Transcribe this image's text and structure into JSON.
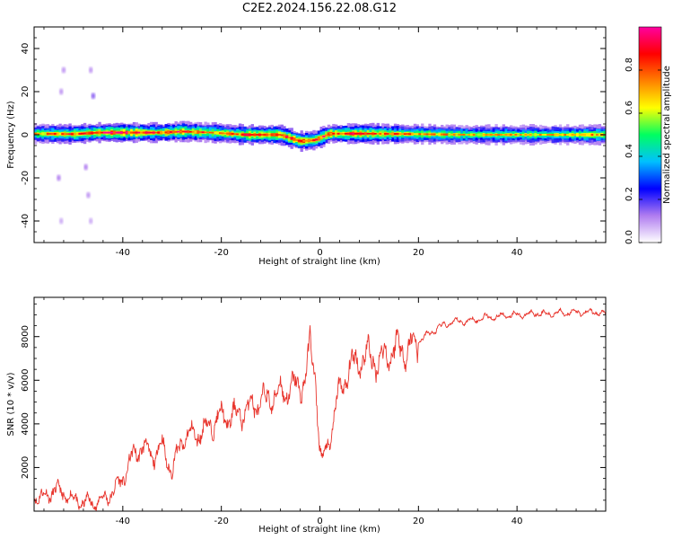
{
  "title": "C2E2.2024.156.22.08.G12",
  "chart_data": [
    {
      "type": "heatmap",
      "xlabel": "Height of straight line (km)",
      "ylabel": "Frequency (Hz)",
      "xlim": [
        -58,
        58
      ],
      "ylim": [
        -50,
        50
      ],
      "xticks": [
        -40,
        -20,
        0,
        20,
        40
      ],
      "yticks": [
        -40,
        -20,
        0,
        20,
        40
      ],
      "colorbar": {
        "label": "Normalized spectral amplitude",
        "range": [
          0,
          1
        ],
        "ticks": [
          0.0,
          0.2,
          0.4,
          0.6,
          0.8
        ],
        "colors": [
          "#ffffff",
          "#b07cf0",
          "#0000ff",
          "#00c0ff",
          "#00ff60",
          "#ffff00",
          "#ff8000",
          "#ff0000",
          "#ff00a0"
        ]
      },
      "ridge": [
        {
          "x": -58,
          "f": 0.5,
          "amp": 0.7
        },
        {
          "x": -50,
          "f": 0.3,
          "amp": 0.85
        },
        {
          "x": -45,
          "f": 1.0,
          "amp": 0.9
        },
        {
          "x": -40,
          "f": 1.0,
          "amp": 0.95
        },
        {
          "x": -32,
          "f": 1.0,
          "amp": 0.8
        },
        {
          "x": -28,
          "f": 1.5,
          "amp": 0.95
        },
        {
          "x": -22,
          "f": 1.0,
          "amp": 0.75
        },
        {
          "x": -15,
          "f": 0.0,
          "amp": 0.9
        },
        {
          "x": -8,
          "f": 0.0,
          "amp": 0.9
        },
        {
          "x": -4,
          "f": -3.0,
          "amp": 0.95
        },
        {
          "x": -1,
          "f": -2.5,
          "amp": 0.85
        },
        {
          "x": 2,
          "f": 0.5,
          "amp": 0.9
        },
        {
          "x": 10,
          "f": 0.5,
          "amp": 0.85
        },
        {
          "x": 20,
          "f": 0.3,
          "amp": 0.75
        },
        {
          "x": 30,
          "f": 0.0,
          "amp": 0.7
        },
        {
          "x": 40,
          "f": 0.0,
          "amp": 0.7
        },
        {
          "x": 50,
          "f": 0.0,
          "amp": 0.7
        },
        {
          "x": 58,
          "f": 0.0,
          "amp": 0.75
        }
      ],
      "spurs": [
        {
          "x": -52.5,
          "f": 20,
          "amp": 0.1
        },
        {
          "x": -52.0,
          "f": 30,
          "amp": 0.1
        },
        {
          "x": -53.0,
          "f": -20,
          "amp": 0.12
        },
        {
          "x": -52.5,
          "f": -40,
          "amp": 0.08
        },
        {
          "x": -46.5,
          "f": 30,
          "amp": 0.1
        },
        {
          "x": -46.0,
          "f": 18,
          "amp": 0.15
        },
        {
          "x": -47.0,
          "f": -28,
          "amp": 0.1
        },
        {
          "x": -46.5,
          "f": -40,
          "amp": 0.08
        },
        {
          "x": -47.5,
          "f": -15,
          "amp": 0.12
        }
      ]
    },
    {
      "type": "line",
      "xlabel": "Height of straight line (km)",
      "ylabel": "SNR (10 * v/v)",
      "xlim": [
        -58,
        58
      ],
      "ylim": [
        0,
        9800
      ],
      "xticks": [
        -40,
        -20,
        0,
        20,
        40
      ],
      "yticks": [
        2000,
        4000,
        6000,
        8000
      ],
      "color": "#e8342c",
      "series": [
        {
          "x": [
            -58,
            -56,
            -54,
            -52,
            -50,
            -48,
            -46,
            -44,
            -42,
            -40,
            -38,
            -36,
            -34,
            -32,
            -30,
            -28,
            -26,
            -24,
            -22,
            -20,
            -18,
            -16,
            -14,
            -12,
            -10,
            -8,
            -6,
            -4,
            -3,
            -2,
            -1,
            0,
            0.5,
            1,
            2,
            3,
            4,
            6,
            8,
            10,
            12,
            14,
            16,
            18,
            20,
            22,
            24,
            26,
            28,
            30,
            32,
            34,
            36,
            38,
            40,
            42,
            44,
            46,
            48,
            50,
            52,
            54,
            56,
            58
          ],
          "y": [
            700,
            600,
            1000,
            800,
            500,
            400,
            400,
            500,
            900,
            1500,
            2500,
            3000,
            2500,
            3000,
            1800,
            3300,
            3500,
            3600,
            4000,
            4300,
            4300,
            4500,
            4800,
            5000,
            5200,
            5400,
            5600,
            5800,
            6000,
            7500,
            6500,
            2800,
            2100,
            2600,
            3300,
            4500,
            5500,
            6500,
            7000,
            7100,
            6800,
            7300,
            7500,
            7400,
            7800,
            8100,
            8400,
            8600,
            8700,
            8700,
            8800,
            8900,
            8900,
            9000,
            9000,
            9000,
            9100,
            9000,
            9100,
            9100,
            9100,
            9100,
            9150,
            9000
          ]
        }
      ]
    }
  ]
}
